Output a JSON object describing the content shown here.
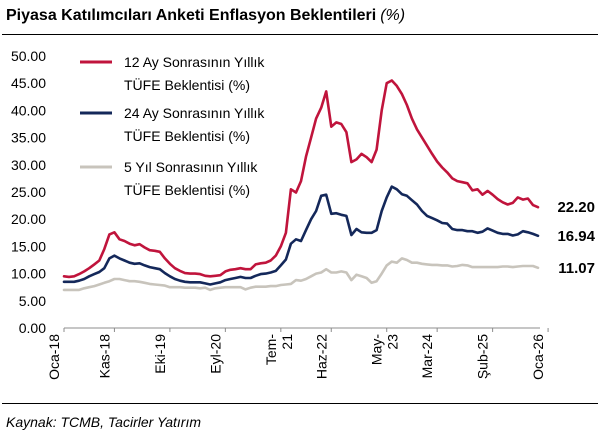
{
  "header": {
    "title": "Piyasa Katılımcıları Anketi Enflasyon Beklentileri",
    "unit": "(%)"
  },
  "footer": {
    "source": "Kaynak: TCMB, Tacirler Yatırım"
  },
  "chart_data": {
    "type": "line",
    "ylim": [
      0,
      50
    ],
    "yticks": [
      "0.00",
      "5.00",
      "10.00",
      "15.00",
      "20.00",
      "25.00",
      "30.00",
      "35.00",
      "40.00",
      "45.00",
      "50.00"
    ],
    "grid": false,
    "legend_position": "top-left",
    "x_labels": [
      {
        "i": 0,
        "lines": [
          "Oca-18"
        ]
      },
      {
        "i": 10,
        "lines": [
          "Kas-18"
        ]
      },
      {
        "i": 21,
        "lines": [
          "Eki-19"
        ]
      },
      {
        "i": 32,
        "lines": [
          "Eyl-20"
        ]
      },
      {
        "i": 43,
        "lines": [
          "Tem-",
          "21"
        ]
      },
      {
        "i": 53,
        "lines": [
          "Haz-22"
        ]
      },
      {
        "i": 64,
        "lines": [
          "May-",
          "23"
        ]
      },
      {
        "i": 74,
        "lines": [
          "Mar-24"
        ]
      },
      {
        "i": 85,
        "lines": [
          "Şub-25"
        ]
      },
      {
        "i": 96,
        "lines": [
          "Oca-26"
        ]
      }
    ],
    "series": [
      {
        "name": "12 Ay Sonrasının Yıllık TÜFE Beklentisi (%)",
        "legend_lines": [
          "12 Ay Sonrasının Yıllık",
          "TÜFE Beklentisi (%)"
        ],
        "color": "#C0143C",
        "end_label": "22.20",
        "values": [
          9.5,
          9.4,
          9.5,
          9.9,
          10.4,
          11.0,
          11.7,
          12.4,
          14.5,
          17.2,
          17.6,
          16.3,
          16.0,
          15.5,
          15.2,
          15.4,
          14.8,
          14.3,
          14.2,
          14.0,
          12.8,
          11.8,
          11.0,
          10.5,
          10.1,
          10.0,
          10.0,
          9.9,
          9.6,
          9.5,
          9.6,
          9.7,
          10.4,
          10.7,
          10.8,
          11.0,
          10.8,
          10.8,
          11.7,
          11.9,
          12.0,
          12.4,
          13.3,
          15.0,
          17.5,
          25.5,
          24.9,
          27.0,
          31.5,
          35.0,
          38.5,
          40.5,
          43.5,
          37.0,
          37.8,
          37.5,
          36.0,
          30.5,
          31.0,
          32.0,
          31.4,
          30.5,
          32.8,
          40.0,
          45.0,
          45.5,
          44.5,
          43.0,
          41.0,
          38.5,
          36.5,
          35.0,
          33.5,
          32.0,
          30.6,
          29.5,
          28.6,
          27.5,
          27.0,
          26.8,
          26.6,
          25.3,
          25.5,
          24.5,
          25.2,
          24.5,
          23.7,
          23.1,
          22.7,
          23.0,
          24.0,
          23.6,
          23.8,
          22.6,
          22.2
        ]
      },
      {
        "name": "24 Ay Sonrasının Yıllık TÜFE Beklentisi (%)",
        "legend_lines": [
          "24 Ay Sonrasının Yıllık",
          "TÜFE Beklentisi (%)"
        ],
        "color": "#14285A",
        "end_label": "16.94",
        "values": [
          8.5,
          8.5,
          8.5,
          8.7,
          9.0,
          9.5,
          9.9,
          10.3,
          11.0,
          12.8,
          13.3,
          12.8,
          12.4,
          12.0,
          11.8,
          11.9,
          11.5,
          11.2,
          11.0,
          10.8,
          10.1,
          9.5,
          9.0,
          8.7,
          8.5,
          8.4,
          8.4,
          8.4,
          8.2,
          8.0,
          8.2,
          8.4,
          8.8,
          9.0,
          9.2,
          9.4,
          9.2,
          9.2,
          9.6,
          9.9,
          10.0,
          10.2,
          10.5,
          11.5,
          12.6,
          15.5,
          16.3,
          16.0,
          18.0,
          20.0,
          21.5,
          24.3,
          24.5,
          21.0,
          21.1,
          20.8,
          20.6,
          17.1,
          18.2,
          17.6,
          17.5,
          17.5,
          18.0,
          21.5,
          24.0,
          26.0,
          25.5,
          24.6,
          24.3,
          23.5,
          22.7,
          21.5,
          20.6,
          20.2,
          19.8,
          19.3,
          19.2,
          18.2,
          18.0,
          18.0,
          17.8,
          17.8,
          17.5,
          17.7,
          18.3,
          17.9,
          17.5,
          17.3,
          17.3,
          17.0,
          17.2,
          17.8,
          17.6,
          17.3,
          16.94
        ]
      },
      {
        "name": "5 Yıl Sonrasının Yıllık TÜFE Beklentisi (%)",
        "legend_lines": [
          "5 Yıl Sonrasının Yıllık",
          "TÜFE Beklentisi (%)"
        ],
        "color": "#C8C4BC",
        "end_label": "11.07",
        "values": [
          7.0,
          7.0,
          7.0,
          7.0,
          7.3,
          7.5,
          7.7,
          8.0,
          8.3,
          8.6,
          9.0,
          9.0,
          8.8,
          8.6,
          8.6,
          8.5,
          8.3,
          8.1,
          8.0,
          7.9,
          7.8,
          7.5,
          7.5,
          7.5,
          7.4,
          7.4,
          7.4,
          7.3,
          7.4,
          7.0,
          7.3,
          7.4,
          7.5,
          7.5,
          7.5,
          7.5,
          7.1,
          7.4,
          7.6,
          7.6,
          7.6,
          7.7,
          7.7,
          7.9,
          8.0,
          8.1,
          8.8,
          8.7,
          9.0,
          9.5,
          10.0,
          10.2,
          10.8,
          10.2,
          10.2,
          10.4,
          10.2,
          8.8,
          9.8,
          9.5,
          9.2,
          8.3,
          8.6,
          10.0,
          11.5,
          12.2,
          12.0,
          12.8,
          12.5,
          12.0,
          12.0,
          11.8,
          11.7,
          11.6,
          11.6,
          11.5,
          11.5,
          11.3,
          11.4,
          11.6,
          11.5,
          11.2,
          11.2,
          11.2,
          11.2,
          11.2,
          11.2,
          11.3,
          11.3,
          11.2,
          11.3,
          11.4,
          11.4,
          11.4,
          11.07
        ]
      }
    ]
  }
}
